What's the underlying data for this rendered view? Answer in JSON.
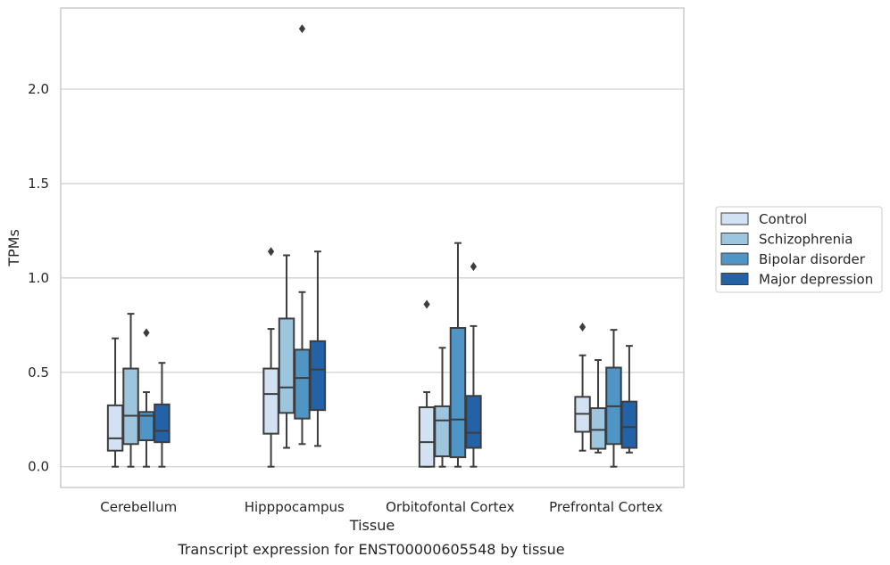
{
  "chart_data": {
    "type": "box",
    "xlabel": "Tissue",
    "ylabel": "TPMs",
    "caption": "Transcript expression for ENST00000605548 by tissue",
    "ylim": [
      -0.11,
      2.43
    ],
    "yticks": [
      0.0,
      0.5,
      1.0,
      1.5,
      2.0
    ],
    "ytick_labels": [
      "0.0",
      "0.5",
      "1.0",
      "1.5",
      "2.0"
    ],
    "grid": "horizontal",
    "legend_position": "right",
    "categories": [
      "Cerebellum",
      "Hipppocampus",
      "Orbitofontal Cortex",
      "Prefrontal Cortex"
    ],
    "series": [
      {
        "name": "Control",
        "color": "#d3e2f3",
        "boxes": [
          {
            "whislo": 0.0,
            "q1": 0.085,
            "median": 0.15,
            "q3": 0.325,
            "whishi": 0.68,
            "fliers": []
          },
          {
            "whislo": 0.0,
            "q1": 0.175,
            "median": 0.385,
            "q3": 0.52,
            "whishi": 0.73,
            "fliers": [
              1.14
            ]
          },
          {
            "whislo": 0.0,
            "q1": 0.0,
            "median": 0.13,
            "q3": 0.315,
            "whishi": 0.395,
            "fliers": [
              0.86
            ]
          },
          {
            "whislo": 0.085,
            "q1": 0.185,
            "median": 0.28,
            "q3": 0.37,
            "whishi": 0.59,
            "fliers": [
              0.74
            ]
          }
        ]
      },
      {
        "name": "Schizophrenia",
        "color": "#9dc5de",
        "boxes": [
          {
            "whislo": 0.0,
            "q1": 0.12,
            "median": 0.27,
            "q3": 0.52,
            "whishi": 0.81,
            "fliers": []
          },
          {
            "whislo": 0.1,
            "q1": 0.285,
            "median": 0.42,
            "q3": 0.785,
            "whishi": 1.12,
            "fliers": []
          },
          {
            "whislo": 0.0,
            "q1": 0.055,
            "median": 0.245,
            "q3": 0.32,
            "whishi": 0.63,
            "fliers": []
          },
          {
            "whislo": 0.075,
            "q1": 0.095,
            "median": 0.195,
            "q3": 0.31,
            "whishi": 0.565,
            "fliers": []
          }
        ]
      },
      {
        "name": "Bipolar disorder",
        "color": "#4f95c5",
        "boxes": [
          {
            "whislo": 0.0,
            "q1": 0.14,
            "median": 0.27,
            "q3": 0.29,
            "whishi": 0.395,
            "fliers": [
              0.71
            ]
          },
          {
            "whislo": 0.12,
            "q1": 0.255,
            "median": 0.47,
            "q3": 0.62,
            "whishi": 0.925,
            "fliers": [
              2.32
            ]
          },
          {
            "whislo": 0.0,
            "q1": 0.05,
            "median": 0.25,
            "q3": 0.735,
            "whishi": 1.185,
            "fliers": []
          },
          {
            "whislo": 0.0,
            "q1": 0.12,
            "median": 0.32,
            "q3": 0.525,
            "whishi": 0.725,
            "fliers": []
          }
        ]
      },
      {
        "name": "Major depression",
        "color": "#2462a7",
        "boxes": [
          {
            "whislo": 0.0,
            "q1": 0.13,
            "median": 0.19,
            "q3": 0.33,
            "whishi": 0.55,
            "fliers": []
          },
          {
            "whislo": 0.11,
            "q1": 0.3,
            "median": 0.515,
            "q3": 0.665,
            "whishi": 1.14,
            "fliers": []
          },
          {
            "whislo": 0.0,
            "q1": 0.1,
            "median": 0.18,
            "q3": 0.375,
            "whishi": 0.745,
            "fliers": [
              1.06
            ]
          },
          {
            "whislo": 0.075,
            "q1": 0.1,
            "median": 0.21,
            "q3": 0.345,
            "whishi": 0.64,
            "fliers": []
          }
        ]
      }
    ]
  }
}
